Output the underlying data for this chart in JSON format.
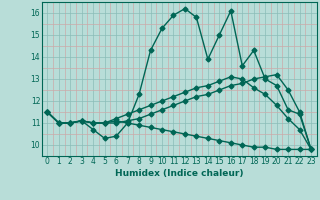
{
  "xlabel": "Humidex (Indice chaleur)",
  "xlim": [
    -0.5,
    23.5
  ],
  "ylim": [
    9.5,
    16.5
  ],
  "yticks": [
    10,
    11,
    12,
    13,
    14,
    15,
    16
  ],
  "xticks": [
    0,
    1,
    2,
    3,
    4,
    5,
    6,
    7,
    8,
    9,
    10,
    11,
    12,
    13,
    14,
    15,
    16,
    17,
    18,
    19,
    20,
    21,
    22,
    23
  ],
  "background_color": "#b8ddd8",
  "major_grid_color": "#8bbdb8",
  "minor_grid_color": "#ccaaaa",
  "line_color": "#006655",
  "line_width": 1.0,
  "marker": "D",
  "marker_size": 2.5,
  "lines": [
    [
      11.5,
      11.0,
      11.0,
      11.1,
      10.7,
      10.3,
      10.4,
      11.0,
      12.3,
      14.3,
      15.3,
      15.9,
      16.2,
      15.8,
      13.9,
      15.0,
      16.1,
      13.6,
      14.3,
      13.0,
      12.7,
      11.6,
      11.4,
      9.8
    ],
    [
      11.5,
      11.0,
      11.0,
      11.1,
      11.0,
      11.0,
      11.0,
      11.1,
      11.2,
      11.4,
      11.6,
      11.8,
      12.0,
      12.2,
      12.3,
      12.5,
      12.7,
      12.8,
      13.0,
      13.1,
      13.2,
      12.5,
      11.5,
      9.8
    ],
    [
      11.5,
      11.0,
      11.0,
      11.1,
      11.0,
      11.0,
      11.2,
      11.4,
      11.6,
      11.8,
      12.0,
      12.2,
      12.4,
      12.6,
      12.7,
      12.9,
      13.1,
      13.0,
      12.6,
      12.3,
      11.8,
      11.2,
      10.7,
      9.8
    ],
    [
      11.5,
      11.0,
      11.0,
      11.1,
      11.0,
      11.0,
      11.1,
      11.0,
      10.9,
      10.8,
      10.7,
      10.6,
      10.5,
      10.4,
      10.3,
      10.2,
      10.1,
      10.0,
      9.9,
      9.9,
      9.8,
      9.8,
      9.8,
      9.8
    ]
  ]
}
